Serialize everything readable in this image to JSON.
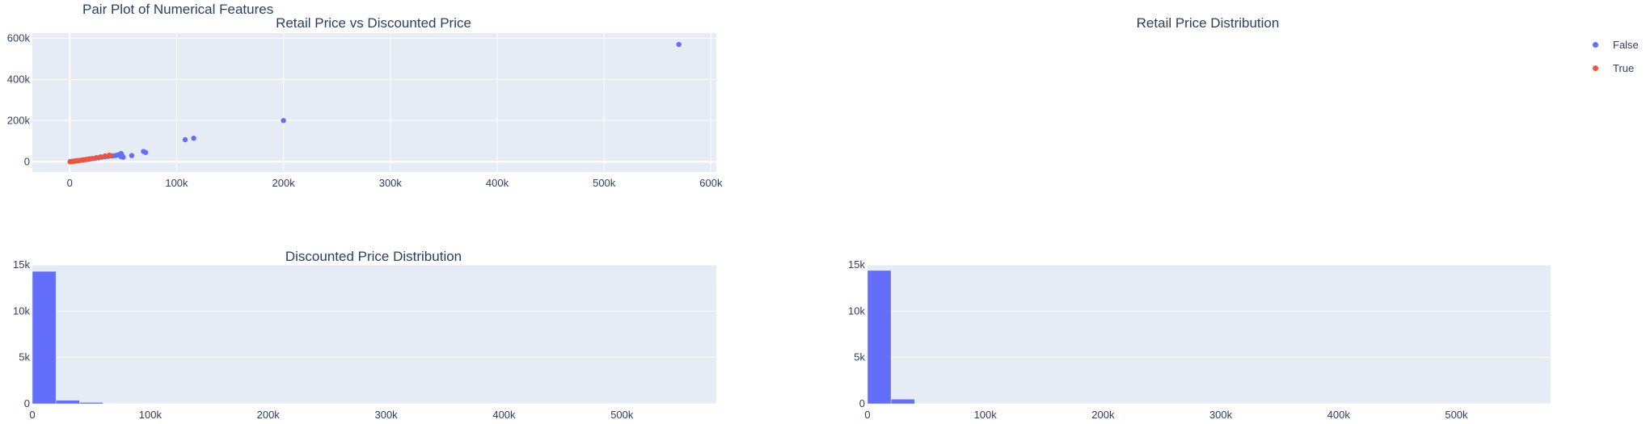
{
  "figure": {
    "title": "Pair Plot of Numerical Features"
  },
  "legend": {
    "items": [
      {
        "label": "False",
        "color": "#636efa"
      },
      {
        "label": "True",
        "color": "#ef553b"
      }
    ]
  },
  "chart_data": [
    {
      "type": "scatter",
      "title": "Retail Price vs Discounted Price",
      "xlim": [
        -35000,
        605000
      ],
      "ylim": [
        -50000,
        625000
      ],
      "x_ticks": [
        0,
        100000,
        200000,
        300000,
        400000,
        500000,
        600000
      ],
      "x_tick_labels": [
        "0",
        "100k",
        "200k",
        "300k",
        "400k",
        "500k",
        "600k"
      ],
      "y_ticks": [
        0,
        200000,
        400000,
        600000
      ],
      "y_tick_labels": [
        "0",
        "200k",
        "400k",
        "600k"
      ],
      "grid": true,
      "series": [
        {
          "name": "False",
          "color": "#636efa",
          "points": [
            [
              500,
              300
            ],
            [
              1500,
              1000
            ],
            [
              3000,
              2000
            ],
            [
              5000,
              3500
            ],
            [
              7000,
              5000
            ],
            [
              9000,
              6500
            ],
            [
              12000,
              9000
            ],
            [
              15000,
              11000
            ],
            [
              18000,
              13000
            ],
            [
              21000,
              15000
            ],
            [
              24000,
              17000
            ],
            [
              27000,
              19000
            ],
            [
              30000,
              22000
            ],
            [
              33000,
              24000
            ],
            [
              36000,
              26000
            ],
            [
              40000,
              28000
            ],
            [
              43000,
              30000
            ],
            [
              45000,
              33000
            ],
            [
              47000,
              36000
            ],
            [
              48000,
              40000
            ],
            [
              48000,
              25000
            ],
            [
              49000,
              30000
            ],
            [
              50000,
              22000
            ],
            [
              58000,
              30000
            ],
            [
              69000,
              50000
            ],
            [
              71000,
              45000
            ],
            [
              108000,
              107000
            ],
            [
              116000,
              114000
            ],
            [
              200000,
              200000
            ],
            [
              570000,
              570000
            ]
          ]
        },
        {
          "name": "True",
          "color": "#ef553b",
          "points": [
            [
              300,
              200
            ],
            [
              800,
              500
            ],
            [
              1500,
              900
            ],
            [
              2500,
              1500
            ],
            [
              3500,
              2300
            ],
            [
              4500,
              3000
            ],
            [
              6000,
              4000
            ],
            [
              7500,
              5000
            ],
            [
              9000,
              6000
            ],
            [
              11000,
              7500
            ],
            [
              13000,
              9000
            ],
            [
              15000,
              10500
            ],
            [
              17000,
              12000
            ],
            [
              19000,
              14000
            ],
            [
              21000,
              15500
            ],
            [
              25000,
              20000
            ],
            [
              29000,
              24000
            ],
            [
              33000,
              28000
            ],
            [
              37000,
              32000
            ],
            [
              38000,
              29000
            ]
          ]
        }
      ]
    },
    {
      "type": "histogram",
      "title": "Retail Price Distribution",
      "bins": [],
      "counts": []
    },
    {
      "type": "bar",
      "title": "Discounted Price Distribution",
      "xlim": [
        0,
        580000
      ],
      "ylim": [
        0,
        15000
      ],
      "x_ticks": [
        0,
        100000,
        200000,
        300000,
        400000,
        500000
      ],
      "x_tick_labels": [
        "0",
        "100k",
        "200k",
        "300k",
        "400k",
        "500k"
      ],
      "y_ticks": [
        0,
        5000,
        10000,
        15000
      ],
      "y_tick_labels": [
        "0",
        "5k",
        "10k",
        "15k"
      ],
      "grid": true,
      "color": "#636efa",
      "bin_width": 20000,
      "bin_starts": [
        0,
        20000,
        40000
      ],
      "counts": [
        14300,
        380,
        150
      ]
    },
    {
      "type": "bar",
      "title": "",
      "xlim": [
        0,
        580000
      ],
      "ylim": [
        0,
        15000
      ],
      "x_ticks": [
        0,
        100000,
        200000,
        300000,
        400000,
        500000
      ],
      "x_tick_labels": [
        "0",
        "100k",
        "200k",
        "300k",
        "400k",
        "500k"
      ],
      "y_ticks": [
        0,
        5000,
        10000,
        15000
      ],
      "y_tick_labels": [
        "0",
        "5k",
        "10k",
        "15k"
      ],
      "grid": true,
      "color": "#636efa",
      "bin_width": 20000,
      "bin_starts": [
        0,
        20000
      ],
      "counts": [
        14400,
        500
      ]
    }
  ]
}
